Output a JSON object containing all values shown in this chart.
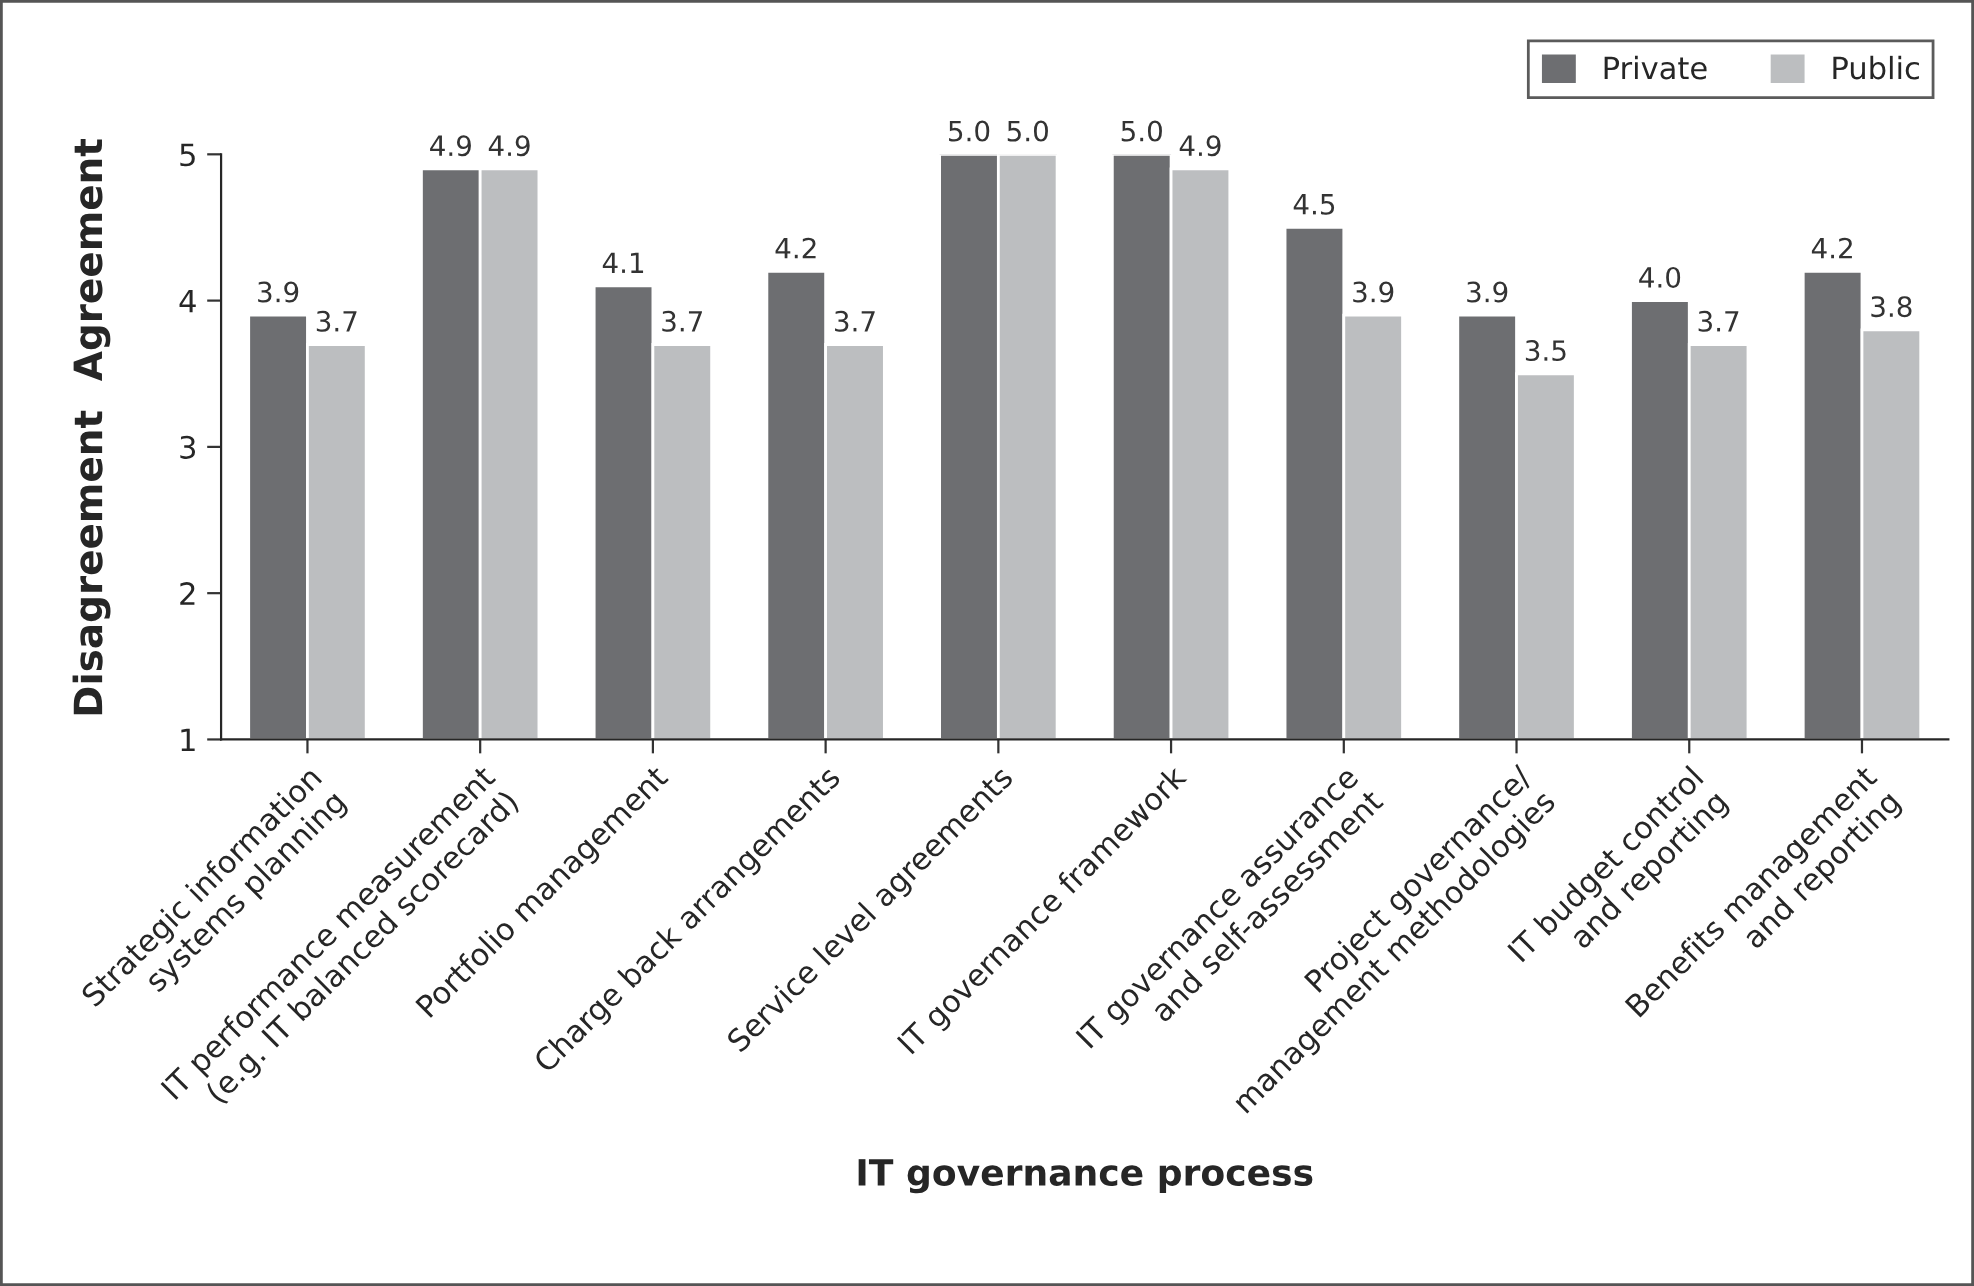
{
  "chart_data": {
    "type": "bar",
    "xlabel": "IT governance process",
    "annotations": [
      "Disagreement",
      "Agreement"
    ],
    "categories": [
      "Strategic information\nsystems planning",
      "IT performance measurement\n(e.g. IT balanced scorecard)",
      "Portfolio management",
      "Charge back arrangements",
      "Service level agreements",
      "IT governance framework",
      "IT governance assurance\nand self-assessment",
      "Project governance/\nmanagement methodologies",
      "IT budget control\nand reporting",
      "Benefits management\nand reporting"
    ],
    "series": [
      {
        "name": "Private",
        "color": "#6d6e71",
        "values": [
          3.9,
          4.9,
          4.1,
          4.2,
          5.0,
          5.0,
          4.5,
          3.9,
          4.0,
          4.2
        ],
        "value_labels": [
          "3.9",
          "4.9",
          "4.1",
          "4.2",
          "5.0",
          "5.0",
          "4.5",
          "3.9",
          "4.0",
          "4.2"
        ]
      },
      {
        "name": "Public",
        "color": "#bcbec0",
        "values": [
          3.7,
          4.9,
          3.7,
          3.7,
          5.0,
          4.9,
          3.9,
          3.5,
          3.7,
          3.8
        ],
        "value_labels": [
          "3.7",
          "4.9",
          "3.7",
          "3.7",
          "5.0",
          "4.9",
          "3.9",
          "3.5",
          "3.7",
          "3.8"
        ]
      }
    ],
    "ylim": [
      1,
      5
    ],
    "yticks": [
      1,
      2,
      3,
      4,
      5
    ],
    "legend": "top right",
    "grid": false
  }
}
